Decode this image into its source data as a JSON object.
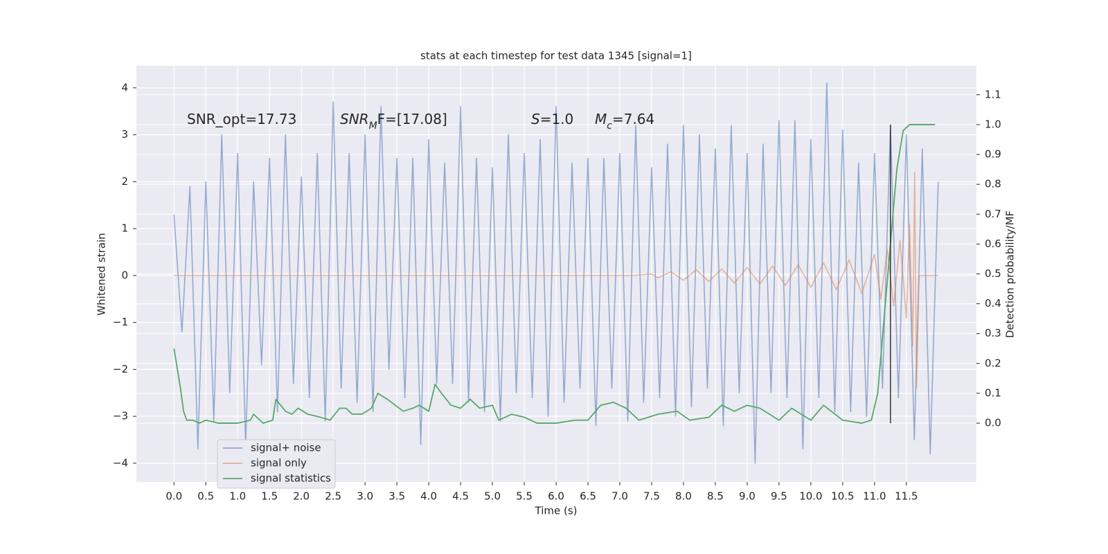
{
  "chart_data": {
    "type": "line",
    "title": "stats at each timestep for test data 1345 [signal=1]",
    "xlabel": "Time (s)",
    "ylabel": "Whitened strain",
    "y2label": "Detection probability/MF",
    "annotations": [
      [
        {
          "text": "SNR_opt=17.73"
        }
      ],
      [
        {
          "text": "SNR",
          "style": "italic"
        },
        {
          "text": "M",
          "style": "sub"
        },
        {
          "text": "F=[17.08]"
        }
      ],
      [
        {
          "text": "S",
          "style": "italic"
        },
        {
          "text": "=1.0"
        }
      ],
      [
        {
          "text": "M",
          "style": "italic"
        },
        {
          "text": "c",
          "style": "sub"
        },
        {
          "text": "=7.64"
        }
      ]
    ],
    "xlim": [
      -0.59,
      12.6
    ],
    "ylim": [
      -4.4,
      4.47
    ],
    "y2lim": [
      -0.197,
      1.197
    ],
    "xticks": [
      {
        "value": 0,
        "label": "0.0"
      },
      {
        "value": 0.5,
        "label": "0.5"
      },
      {
        "value": 1,
        "label": "1.0"
      },
      {
        "value": 1.5,
        "label": "1.5"
      },
      {
        "value": 2,
        "label": "2.0"
      },
      {
        "value": 2.5,
        "label": "2.5"
      },
      {
        "value": 3,
        "label": "3.0"
      },
      {
        "value": 3.5,
        "label": "3.5"
      },
      {
        "value": 4,
        "label": "4.0"
      },
      {
        "value": 4.5,
        "label": "4.5"
      },
      {
        "value": 5,
        "label": "5.0"
      },
      {
        "value": 5.5,
        "label": "5.5"
      },
      {
        "value": 6,
        "label": "6.0"
      },
      {
        "value": 6.5,
        "label": "6.5"
      },
      {
        "value": 7,
        "label": "7.0"
      },
      {
        "value": 7.5,
        "label": "7.5"
      },
      {
        "value": 8,
        "label": "8.0"
      },
      {
        "value": 8.5,
        "label": "8.5"
      },
      {
        "value": 9,
        "label": "9.0"
      },
      {
        "value": 9.5,
        "label": "9.5"
      },
      {
        "value": 10,
        "label": "10.0"
      },
      {
        "value": 10.5,
        "label": "10.5"
      },
      {
        "value": 11,
        "label": "11.0"
      },
      {
        "value": 11.5,
        "label": "11.5"
      }
    ],
    "yticks": [
      {
        "value": -4,
        "label": "−4"
      },
      {
        "value": -3,
        "label": "−3"
      },
      {
        "value": -2,
        "label": "−2"
      },
      {
        "value": -1,
        "label": "−1"
      },
      0,
      1,
      2,
      3,
      4
    ],
    "y2ticks": [
      {
        "value": 0,
        "label": "0.0"
      },
      {
        "value": 0.1,
        "label": "0.1"
      },
      {
        "value": 0.2,
        "label": "0.2"
      },
      {
        "value": 0.3,
        "label": "0.3"
      },
      {
        "value": 0.4,
        "label": "0.4"
      },
      {
        "value": 0.5,
        "label": "0.5"
      },
      {
        "value": 0.6,
        "label": "0.6"
      },
      {
        "value": 0.7,
        "label": "0.7"
      },
      {
        "value": 0.8,
        "label": "0.8"
      },
      {
        "value": 0.9,
        "label": "0.9"
      },
      {
        "value": 1,
        "label": "1.0"
      },
      {
        "value": 1.1,
        "label": "1.1"
      }
    ],
    "grid": true,
    "legend": "lower left",
    "series": [
      {
        "name": "signal+ noise",
        "color": "#4c72b0",
        "x": [
          0,
          0.125,
          0.25,
          0.375,
          0.5,
          0.625,
          0.75,
          0.875,
          1,
          1.125,
          1.25,
          1.375,
          1.5,
          1.625,
          1.75,
          1.875,
          2,
          2.125,
          2.25,
          2.375,
          2.5,
          2.625,
          2.75,
          2.875,
          3,
          3.125,
          3.25,
          3.375,
          3.5,
          3.625,
          3.75,
          3.875,
          4,
          4.125,
          4.25,
          4.375,
          4.5,
          4.625,
          4.75,
          4.875,
          5,
          5.125,
          5.25,
          5.375,
          5.5,
          5.625,
          5.75,
          5.875,
          6,
          6.125,
          6.25,
          6.375,
          6.5,
          6.625,
          6.75,
          6.875,
          7,
          7.125,
          7.25,
          7.375,
          7.5,
          7.625,
          7.75,
          7.875,
          8,
          8.125,
          8.25,
          8.375,
          8.5,
          8.625,
          8.75,
          8.875,
          9,
          9.125,
          9.25,
          9.375,
          9.5,
          9.625,
          9.75,
          9.875,
          10,
          10.125,
          10.25,
          10.375,
          10.5,
          10.625,
          10.75,
          10.875,
          11,
          11.125,
          11.25,
          11.375,
          11.5,
          11.625,
          11.75,
          11.875,
          12
        ],
        "values": [
          1.3,
          -1.2,
          1.9,
          -3.7,
          2.0,
          -3.1,
          3.0,
          -2.5,
          2.6,
          -3.6,
          2.0,
          -1.9,
          2.5,
          -2.9,
          3.0,
          -2.3,
          2.1,
          -2.6,
          2.6,
          -3.1,
          3.7,
          -2.4,
          2.6,
          -2.7,
          3.0,
          -2.9,
          3.6,
          -2.0,
          2.5,
          -2.6,
          2.5,
          -3.6,
          2.9,
          -2.3,
          2.4,
          -2.3,
          3.6,
          -2.7,
          2.5,
          -2.9,
          2.3,
          -3.1,
          3.0,
          -2.5,
          2.6,
          -2.6,
          2.9,
          -3.0,
          3.6,
          -2.7,
          2.4,
          -2.4,
          2.5,
          -3.2,
          2.5,
          -2.4,
          2.6,
          -3.1,
          3.2,
          -2.7,
          2.3,
          -2.6,
          2.8,
          -3.0,
          3.2,
          -2.8,
          3.0,
          -2.4,
          2.7,
          -3.2,
          3.2,
          -2.5,
          2.6,
          -4.0,
          2.8,
          -2.5,
          3.3,
          -2.6,
          3.3,
          -3.7,
          2.9,
          -2.6,
          4.1,
          -2.9,
          3.1,
          -2.9,
          2.4,
          -3.0,
          2.6,
          -2.4,
          3.2,
          -2.6,
          3.0,
          -3.5,
          2.7,
          -3.8,
          2.0
        ]
      },
      {
        "name": "signal only",
        "color": "#dd8452",
        "x": [
          0,
          7.2,
          7.5,
          7.6,
          7.8,
          8.0,
          8.2,
          8.4,
          8.6,
          8.8,
          9.0,
          9.2,
          9.4,
          9.6,
          9.8,
          10.0,
          10.2,
          10.4,
          10.6,
          10.8,
          11.0,
          11.1,
          11.2,
          11.3,
          11.4,
          11.5,
          11.55,
          11.6,
          11.63,
          11.66,
          11.7,
          12.0
        ],
        "values": [
          0,
          0,
          0.03,
          -0.05,
          0.08,
          -0.1,
          0.12,
          -0.13,
          0.14,
          -0.16,
          0.17,
          -0.18,
          0.2,
          -0.21,
          0.23,
          -0.25,
          0.27,
          -0.3,
          0.33,
          -0.38,
          0.45,
          -0.5,
          0.56,
          -0.65,
          0.75,
          -0.9,
          1.1,
          -1.5,
          2.2,
          -2.4,
          0,
          0
        ]
      },
      {
        "name": "signal statistics",
        "color": "#55a868",
        "axis": "y2",
        "x": [
          0,
          0.1,
          0.15,
          0.2,
          0.3,
          0.4,
          0.5,
          0.7,
          1.0,
          1.2,
          1.25,
          1.4,
          1.55,
          1.6,
          1.75,
          1.85,
          1.95,
          2.1,
          2.3,
          2.45,
          2.6,
          2.7,
          2.8,
          2.95,
          3.1,
          3.2,
          3.35,
          3.6,
          3.75,
          3.85,
          4.0,
          4.1,
          4.2,
          4.35,
          4.5,
          4.65,
          4.8,
          5.0,
          5.1,
          5.3,
          5.5,
          5.7,
          6.0,
          6.3,
          6.5,
          6.7,
          6.9,
          7.1,
          7.3,
          7.6,
          7.9,
          8.1,
          8.4,
          8.6,
          8.8,
          9.0,
          9.2,
          9.5,
          9.7,
          10.0,
          10.2,
          10.5,
          10.8,
          10.95,
          11.05,
          11.15,
          11.25,
          11.35,
          11.45,
          11.55,
          11.95
        ],
        "values": [
          0.25,
          0.12,
          0.04,
          0.01,
          0.01,
          0.0,
          0.01,
          0.0,
          0.0,
          0.01,
          0.03,
          0.0,
          0.01,
          0.08,
          0.04,
          0.03,
          0.05,
          0.03,
          0.02,
          0.01,
          0.05,
          0.05,
          0.03,
          0.03,
          0.05,
          0.1,
          0.08,
          0.04,
          0.05,
          0.06,
          0.04,
          0.13,
          0.1,
          0.06,
          0.05,
          0.08,
          0.05,
          0.06,
          0.01,
          0.03,
          0.02,
          0.0,
          0.0,
          0.01,
          0.01,
          0.06,
          0.07,
          0.05,
          0.01,
          0.03,
          0.04,
          0.01,
          0.02,
          0.06,
          0.04,
          0.06,
          0.05,
          0.01,
          0.05,
          0.01,
          0.06,
          0.01,
          0.0,
          0.01,
          0.1,
          0.35,
          0.6,
          0.85,
          0.98,
          1.0,
          1.0
        ]
      }
    ],
    "vline": {
      "x": 11.25,
      "y2": [
        0,
        1
      ],
      "color": "#333333"
    }
  }
}
